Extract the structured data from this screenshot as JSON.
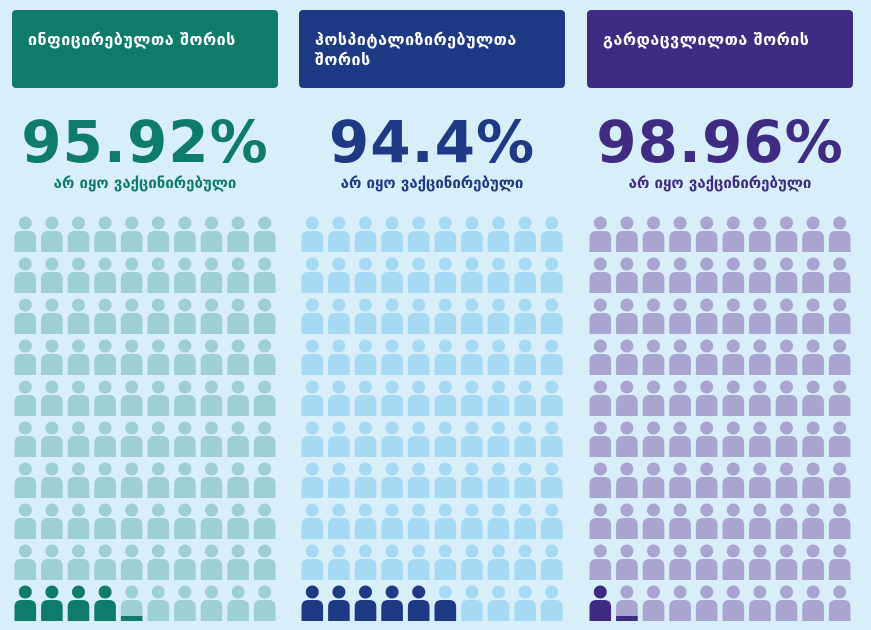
{
  "chart_data": [
    {
      "type": "pictograph",
      "title": "ინფიცირებულთა შორის",
      "values": [
        95.92
      ],
      "value_labels": [
        "95.92%"
      ],
      "subtitle": "არ იყო ვაქცინირებული",
      "color": "#0f7c6b",
      "light_color": "#9fd0d1"
    },
    {
      "type": "pictograph",
      "title": "ჰოსპიტალიზირებულთა შორის",
      "values": [
        94.4
      ],
      "value_labels": [
        "94.4%"
      ],
      "subtitle": "არ იყო ვაქცინირებული",
      "color": "#1e3a84",
      "light_color": "#a6daf4"
    },
    {
      "type": "pictograph",
      "title": "გარდაცვლილთა შორის",
      "values": [
        98.96
      ],
      "value_labels": [
        "98.96%"
      ],
      "subtitle": "არ იყო ვაქცინირებული",
      "color": "#3f2b82",
      "light_color": "#aaa4d1"
    }
  ]
}
